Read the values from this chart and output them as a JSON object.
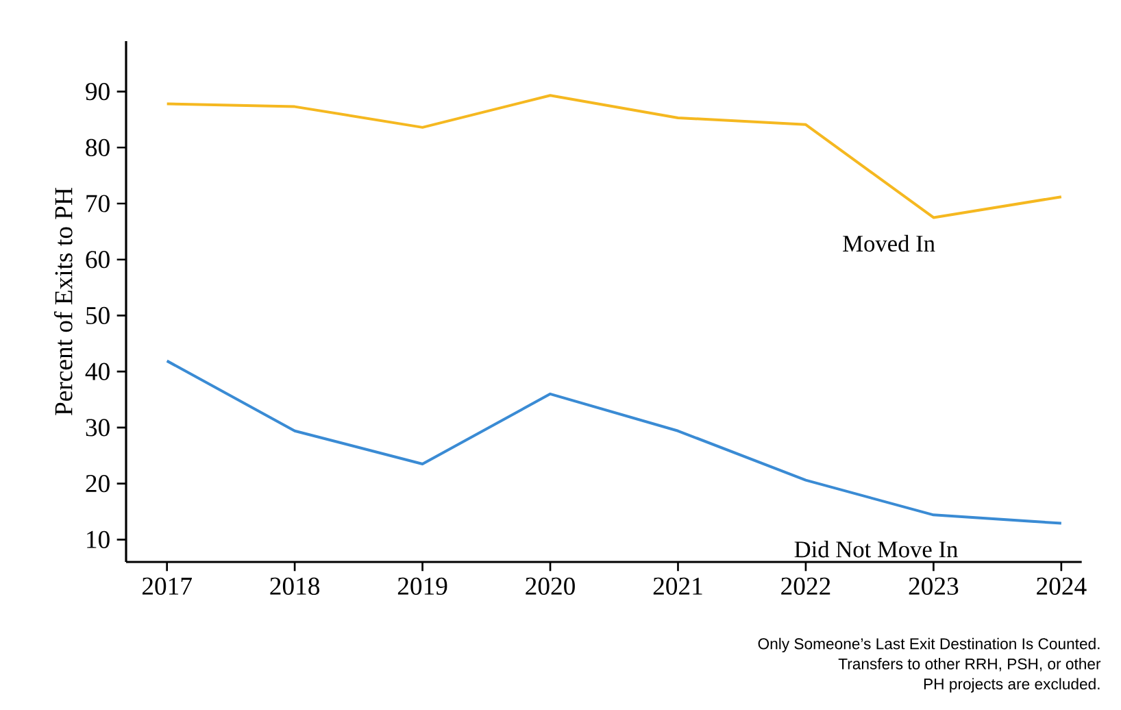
{
  "chart_data": {
    "type": "line",
    "ylabel": "Percent of Exits to PH",
    "categories": [
      "2017",
      "2018",
      "2019",
      "2020",
      "2021",
      "2022",
      "2023",
      "2024"
    ],
    "series": [
      {
        "name": "Moved In",
        "color": "#f5b820",
        "values": [
          87.8,
          87.3,
          83.6,
          89.3,
          85.3,
          84.1,
          67.5,
          71.2
        ]
      },
      {
        "name": "Did Not Move In",
        "color": "#3a8bd4",
        "values": [
          41.9,
          29.4,
          23.5,
          36.0,
          29.4,
          20.6,
          14.4,
          12.9
        ]
      }
    ],
    "ylim": [
      6,
      99
    ],
    "yticks": [
      10,
      20,
      30,
      40,
      50,
      60,
      70,
      80,
      90
    ],
    "grid": false,
    "legend": false,
    "marker": "none",
    "line_style": "solid",
    "annotations": [
      "Only Someone’s Last Exit Destination Is Counted.",
      "Transfers to other RRH, PSH, or other",
      "PH projects are excluded."
    ]
  }
}
